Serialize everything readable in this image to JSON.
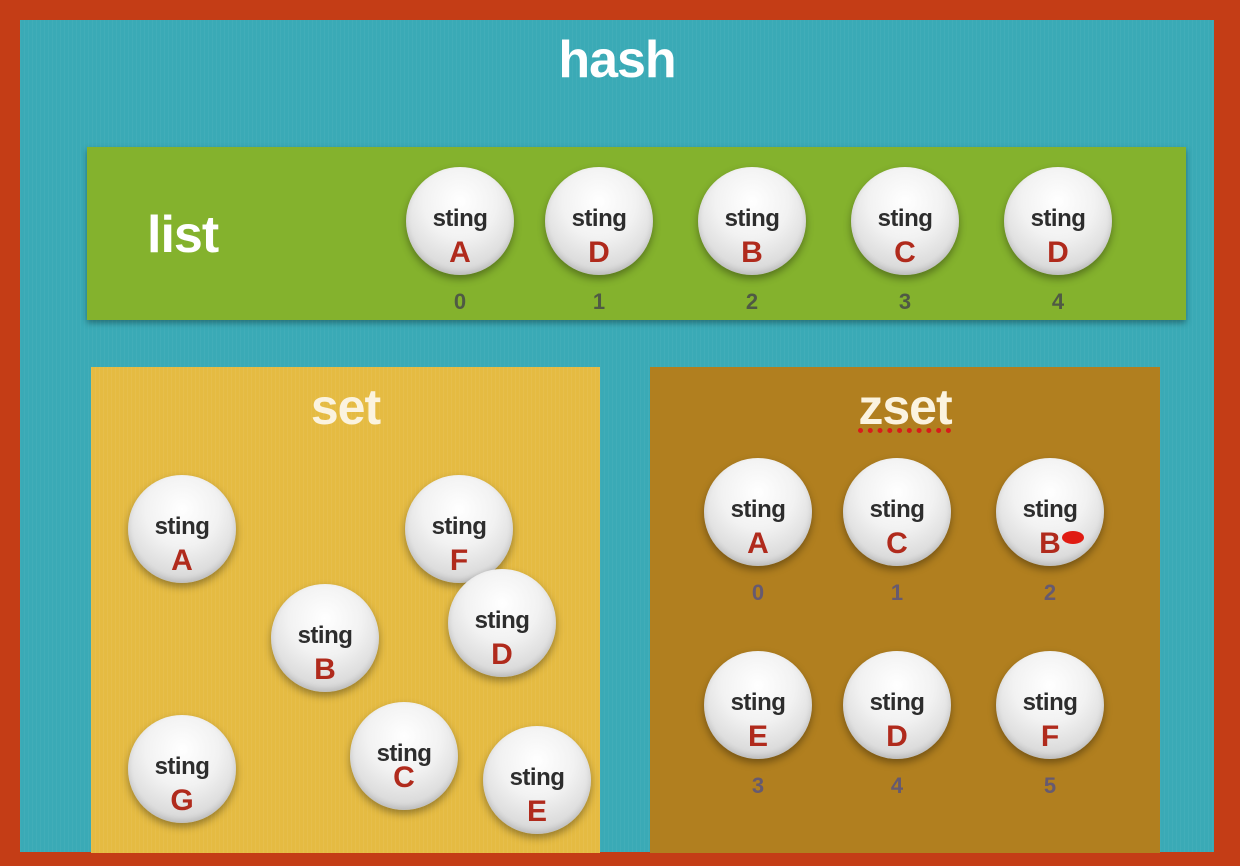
{
  "hash": {
    "title": "hash"
  },
  "list": {
    "title": "list",
    "items": [
      {
        "word": "sting",
        "letter": "A",
        "index": "0"
      },
      {
        "word": "sting",
        "letter": "D",
        "index": "1"
      },
      {
        "word": "sting",
        "letter": "B",
        "index": "2"
      },
      {
        "word": "sting",
        "letter": "C",
        "index": "3"
      },
      {
        "word": "sting",
        "letter": "D",
        "index": "4"
      }
    ]
  },
  "set": {
    "title": "set",
    "items": [
      {
        "word": "sting",
        "letter": "A"
      },
      {
        "word": "sting",
        "letter": "F"
      },
      {
        "word": "sting",
        "letter": "B"
      },
      {
        "word": "sting",
        "letter": "D"
      },
      {
        "word": "sting",
        "letter": "G"
      },
      {
        "word": "sting",
        "letter": "C"
      },
      {
        "word": "sting",
        "letter": "E"
      }
    ]
  },
  "zset": {
    "title": "zset",
    "items": [
      {
        "word": "sting",
        "letter": "A",
        "index": "0"
      },
      {
        "word": "sting",
        "letter": "C",
        "index": "1"
      },
      {
        "word": "sting",
        "letter": "B",
        "index": "2"
      },
      {
        "word": "sting",
        "letter": "E",
        "index": "3"
      },
      {
        "word": "sting",
        "letter": "D",
        "index": "4"
      },
      {
        "word": "sting",
        "letter": "F",
        "index": "5"
      }
    ]
  },
  "colors": {
    "frame": "#c43d16",
    "hash": "#3aaab6",
    "list": "#84b22d",
    "set": "#e5bb42",
    "zset": "#b17f1f",
    "letter": "#b02a1c"
  }
}
